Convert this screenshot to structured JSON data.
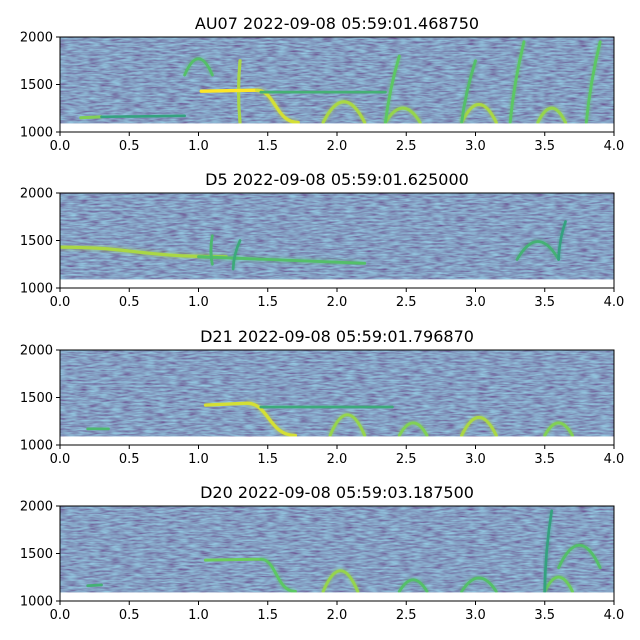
{
  "chart_data": [
    {
      "type": "heatmap",
      "title": "AU07 2022-09-08 05:59:01.468750",
      "xlabel": "",
      "ylabel": "",
      "xlim": [
        0.0,
        4.0
      ],
      "ylim": [
        1000,
        2000
      ],
      "xticks": [
        "0.0",
        "0.5",
        "1.0",
        "1.5",
        "2.0",
        "2.5",
        "3.0",
        "3.5",
        "4.0"
      ],
      "yticks": [
        "1000",
        "1500",
        "2000"
      ],
      "colormap": "viridis",
      "calls": [
        {
          "shape": "flat",
          "x": [
            0.15,
            0.3
          ],
          "y": [
            1150,
            1160
          ],
          "intensity": 0.7
        },
        {
          "shape": "flat",
          "x": [
            0.3,
            0.9
          ],
          "y": [
            1160,
            1170
          ],
          "intensity": 0.35
        },
        {
          "shape": "arch",
          "x": [
            0.9,
            1.1
          ],
          "y": [
            1600,
            1780
          ],
          "intensity": 0.55
        },
        {
          "shape": "vertical",
          "x": [
            1.3,
            1.3
          ],
          "y": [
            1100,
            1750
          ],
          "intensity": 0.8
        },
        {
          "shape": "flat",
          "x": [
            1.02,
            1.42
          ],
          "y": [
            1430,
            1440
          ],
          "intensity": 1.0
        },
        {
          "shape": "descent",
          "x": [
            1.42,
            1.72
          ],
          "y": [
            1440,
            1100
          ],
          "intensity": 0.9
        },
        {
          "shape": "flat",
          "x": [
            1.45,
            2.35
          ],
          "y": [
            1420,
            1420
          ],
          "intensity": 0.45
        },
        {
          "shape": "arch",
          "x": [
            1.9,
            2.2
          ],
          "y": [
            1100,
            1330
          ],
          "intensity": 0.8
        },
        {
          "shape": "arch",
          "x": [
            2.35,
            2.6
          ],
          "y": [
            1100,
            1260
          ],
          "intensity": 0.75
        },
        {
          "shape": "arch",
          "x": [
            2.9,
            3.15
          ],
          "y": [
            1100,
            1300
          ],
          "intensity": 0.8
        },
        {
          "shape": "arch",
          "x": [
            3.45,
            3.65
          ],
          "y": [
            1100,
            1260
          ],
          "intensity": 0.75
        },
        {
          "shape": "vertical",
          "x": [
            2.35,
            2.45
          ],
          "y": [
            1100,
            1800
          ],
          "intensity": 0.6
        },
        {
          "shape": "vertical",
          "x": [
            2.9,
            3.0
          ],
          "y": [
            1100,
            1750
          ],
          "intensity": 0.55
        },
        {
          "shape": "vertical",
          "x": [
            3.25,
            3.35
          ],
          "y": [
            1100,
            1950
          ],
          "intensity": 0.6
        },
        {
          "shape": "vertical",
          "x": [
            3.8,
            3.9
          ],
          "y": [
            1100,
            1950
          ],
          "intensity": 0.6
        }
      ]
    },
    {
      "type": "heatmap",
      "title": "D5 2022-09-08 05:59:01.625000",
      "xlabel": "",
      "ylabel": "",
      "xlim": [
        0.0,
        4.0
      ],
      "ylim": [
        1000,
        2000
      ],
      "xticks": [
        "0.0",
        "0.5",
        "1.0",
        "1.5",
        "2.0",
        "2.5",
        "3.0",
        "3.5",
        "4.0"
      ],
      "yticks": [
        "1000",
        "1500",
        "2000"
      ],
      "colormap": "viridis",
      "calls": [
        {
          "shape": "descent",
          "x": [
            0.0,
            1.2
          ],
          "y": [
            1430,
            1330
          ],
          "intensity": 0.8
        },
        {
          "shape": "flat",
          "x": [
            1.0,
            2.2
          ],
          "y": [
            1330,
            1260
          ],
          "intensity": 0.55
        },
        {
          "shape": "vertical",
          "x": [
            1.1,
            1.1
          ],
          "y": [
            1250,
            1550
          ],
          "intensity": 0.5
        },
        {
          "shape": "vertical",
          "x": [
            1.25,
            1.3
          ],
          "y": [
            1200,
            1500
          ],
          "intensity": 0.4
        },
        {
          "shape": "arch",
          "x": [
            3.3,
            3.6
          ],
          "y": [
            1300,
            1500
          ],
          "intensity": 0.45
        },
        {
          "shape": "vertical",
          "x": [
            3.6,
            3.65
          ],
          "y": [
            1300,
            1700
          ],
          "intensity": 0.35
        }
      ]
    },
    {
      "type": "heatmap",
      "title": "D21 2022-09-08 05:59:01.796870",
      "xlabel": "",
      "ylabel": "",
      "xlim": [
        0.0,
        4.0
      ],
      "ylim": [
        1000,
        2000
      ],
      "xticks": [
        "0.0",
        "0.5",
        "1.0",
        "1.5",
        "2.0",
        "2.5",
        "3.0",
        "3.5",
        "4.0"
      ],
      "yticks": [
        "1000",
        "1500",
        "2000"
      ],
      "colormap": "viridis",
      "calls": [
        {
          "shape": "flat",
          "x": [
            0.2,
            0.35
          ],
          "y": [
            1170,
            1170
          ],
          "intensity": 0.5
        },
        {
          "shape": "flat",
          "x": [
            1.05,
            1.35
          ],
          "y": [
            1420,
            1440
          ],
          "intensity": 0.9
        },
        {
          "shape": "descent",
          "x": [
            1.35,
            1.7
          ],
          "y": [
            1440,
            1100
          ],
          "intensity": 0.9
        },
        {
          "shape": "flat",
          "x": [
            1.45,
            2.4
          ],
          "y": [
            1400,
            1400
          ],
          "intensity": 0.4
        },
        {
          "shape": "arch",
          "x": [
            1.95,
            2.2
          ],
          "y": [
            1100,
            1330
          ],
          "intensity": 0.75
        },
        {
          "shape": "arch",
          "x": [
            2.45,
            2.65
          ],
          "y": [
            1100,
            1240
          ],
          "intensity": 0.7
        },
        {
          "shape": "arch",
          "x": [
            2.9,
            3.15
          ],
          "y": [
            1100,
            1300
          ],
          "intensity": 0.8
        },
        {
          "shape": "arch",
          "x": [
            3.5,
            3.7
          ],
          "y": [
            1100,
            1240
          ],
          "intensity": 0.7
        }
      ]
    },
    {
      "type": "heatmap",
      "title": "D20 2022-09-08 05:59:03.187500",
      "xlabel": "",
      "ylabel": "",
      "xlim": [
        0.0,
        4.0
      ],
      "ylim": [
        1000,
        2000
      ],
      "xticks": [
        "0.0",
        "0.5",
        "1.0",
        "1.5",
        "2.0",
        "2.5",
        "3.0",
        "3.5",
        "4.0"
      ],
      "yticks": [
        "1000",
        "1500",
        "2000"
      ],
      "colormap": "viridis",
      "calls": [
        {
          "shape": "flat",
          "x": [
            0.2,
            0.3
          ],
          "y": [
            1160,
            1170
          ],
          "intensity": 0.45
        },
        {
          "shape": "flat",
          "x": [
            1.05,
            1.45
          ],
          "y": [
            1430,
            1440
          ],
          "intensity": 0.65
        },
        {
          "shape": "descent",
          "x": [
            1.45,
            1.7
          ],
          "y": [
            1440,
            1100
          ],
          "intensity": 0.6
        },
        {
          "shape": "arch",
          "x": [
            1.9,
            2.15
          ],
          "y": [
            1100,
            1330
          ],
          "intensity": 0.75
        },
        {
          "shape": "arch",
          "x": [
            2.45,
            2.65
          ],
          "y": [
            1100,
            1230
          ],
          "intensity": 0.55
        },
        {
          "shape": "arch",
          "x": [
            2.9,
            3.15
          ],
          "y": [
            1100,
            1250
          ],
          "intensity": 0.55
        },
        {
          "shape": "arch",
          "x": [
            3.5,
            3.7
          ],
          "y": [
            1100,
            1260
          ],
          "intensity": 0.65
        },
        {
          "shape": "arch",
          "x": [
            3.6,
            3.9
          ],
          "y": [
            1350,
            1600
          ],
          "intensity": 0.55
        },
        {
          "shape": "vertical",
          "x": [
            3.5,
            3.55
          ],
          "y": [
            1100,
            1950
          ],
          "intensity": 0.35
        }
      ]
    }
  ]
}
